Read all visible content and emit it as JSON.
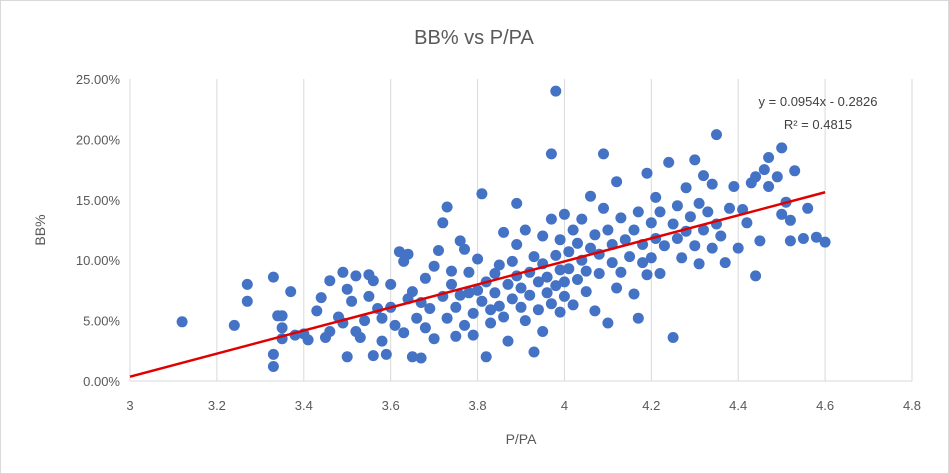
{
  "chart_data": {
    "type": "scatter",
    "title": "BB% vs P/PA",
    "xlabel": "P/PA",
    "ylabel": "BB%",
    "xlim": [
      3,
      4.8
    ],
    "ylim": [
      0,
      0.25
    ],
    "x_ticks": [
      "3",
      "3.2",
      "3.4",
      "3.6",
      "3.8",
      "4",
      "4.2",
      "4.4",
      "4.6",
      "4.8"
    ],
    "y_ticks": [
      "0.00%",
      "5.00%",
      "10.00%",
      "15.00%",
      "20.00%",
      "25.00%"
    ],
    "grid": "vertical",
    "legend": "none",
    "point_color": "#4472c4",
    "trend_color": "#e00000",
    "trendline": {
      "slope": 0.0954,
      "intercept": -0.2826,
      "x_range": [
        3,
        4.6
      ],
      "equation": "y = 0.0954x - 0.2826",
      "r_squared": "R² = 0.4815"
    },
    "points": [
      [
        3.12,
        0.049
      ],
      [
        3.24,
        0.046
      ],
      [
        3.27,
        0.08
      ],
      [
        3.27,
        0.066
      ],
      [
        3.33,
        0.086
      ],
      [
        3.33,
        0.022
      ],
      [
        3.33,
        0.012
      ],
      [
        3.34,
        0.054
      ],
      [
        3.35,
        0.054
      ],
      [
        3.35,
        0.044
      ],
      [
        3.35,
        0.035
      ],
      [
        3.37,
        0.074
      ],
      [
        3.38,
        0.038
      ],
      [
        3.4,
        0.039
      ],
      [
        3.41,
        0.034
      ],
      [
        3.43,
        0.058
      ],
      [
        3.44,
        0.069
      ],
      [
        3.45,
        0.036
      ],
      [
        3.46,
        0.083
      ],
      [
        3.46,
        0.041
      ],
      [
        3.48,
        0.053
      ],
      [
        3.49,
        0.048
      ],
      [
        3.49,
        0.09
      ],
      [
        3.5,
        0.076
      ],
      [
        3.5,
        0.02
      ],
      [
        3.51,
        0.066
      ],
      [
        3.52,
        0.087
      ],
      [
        3.52,
        0.041
      ],
      [
        3.53,
        0.036
      ],
      [
        3.54,
        0.05
      ],
      [
        3.55,
        0.07
      ],
      [
        3.55,
        0.088
      ],
      [
        3.56,
        0.083
      ],
      [
        3.56,
        0.021
      ],
      [
        3.57,
        0.06
      ],
      [
        3.58,
        0.052
      ],
      [
        3.58,
        0.033
      ],
      [
        3.59,
        0.022
      ],
      [
        3.6,
        0.061
      ],
      [
        3.6,
        0.08
      ],
      [
        3.61,
        0.046
      ],
      [
        3.62,
        0.107
      ],
      [
        3.63,
        0.099
      ],
      [
        3.63,
        0.04
      ],
      [
        3.64,
        0.068
      ],
      [
        3.64,
        0.105
      ],
      [
        3.65,
        0.02
      ],
      [
        3.65,
        0.074
      ],
      [
        3.66,
        0.052
      ],
      [
        3.67,
        0.019
      ],
      [
        3.67,
        0.065
      ],
      [
        3.68,
        0.085
      ],
      [
        3.68,
        0.044
      ],
      [
        3.69,
        0.06
      ],
      [
        3.7,
        0.095
      ],
      [
        3.7,
        0.035
      ],
      [
        3.71,
        0.108
      ],
      [
        3.72,
        0.07
      ],
      [
        3.72,
        0.131
      ],
      [
        3.73,
        0.144
      ],
      [
        3.73,
        0.052
      ],
      [
        3.74,
        0.08
      ],
      [
        3.74,
        0.091
      ],
      [
        3.75,
        0.061
      ],
      [
        3.75,
        0.037
      ],
      [
        3.76,
        0.071
      ],
      [
        3.76,
        0.116
      ],
      [
        3.77,
        0.109
      ],
      [
        3.77,
        0.046
      ],
      [
        3.78,
        0.073
      ],
      [
        3.78,
        0.09
      ],
      [
        3.79,
        0.056
      ],
      [
        3.79,
        0.038
      ],
      [
        3.8,
        0.075
      ],
      [
        3.8,
        0.101
      ],
      [
        3.81,
        0.066
      ],
      [
        3.81,
        0.155
      ],
      [
        3.82,
        0.02
      ],
      [
        3.82,
        0.082
      ],
      [
        3.83,
        0.048
      ],
      [
        3.83,
        0.059
      ],
      [
        3.84,
        0.089
      ],
      [
        3.84,
        0.073
      ],
      [
        3.85,
        0.062
      ],
      [
        3.85,
        0.096
      ],
      [
        3.86,
        0.123
      ],
      [
        3.86,
        0.053
      ],
      [
        3.87,
        0.08
      ],
      [
        3.87,
        0.033
      ],
      [
        3.88,
        0.099
      ],
      [
        3.88,
        0.068
      ],
      [
        3.89,
        0.087
      ],
      [
        3.89,
        0.113
      ],
      [
        3.89,
        0.147
      ],
      [
        3.9,
        0.061
      ],
      [
        3.9,
        0.077
      ],
      [
        3.91,
        0.125
      ],
      [
        3.91,
        0.05
      ],
      [
        3.92,
        0.09
      ],
      [
        3.92,
        0.071
      ],
      [
        3.93,
        0.103
      ],
      [
        3.93,
        0.024
      ],
      [
        3.94,
        0.082
      ],
      [
        3.94,
        0.059
      ],
      [
        3.95,
        0.12
      ],
      [
        3.95,
        0.097
      ],
      [
        3.95,
        0.041
      ],
      [
        3.96,
        0.073
      ],
      [
        3.96,
        0.086
      ],
      [
        3.97,
        0.134
      ],
      [
        3.97,
        0.064
      ],
      [
        3.97,
        0.188
      ],
      [
        3.98,
        0.104
      ],
      [
        3.98,
        0.079
      ],
      [
        3.98,
        0.24
      ],
      [
        3.99,
        0.092
      ],
      [
        3.99,
        0.057
      ],
      [
        3.99,
        0.117
      ],
      [
        4.0,
        0.082
      ],
      [
        4.0,
        0.138
      ],
      [
        4.0,
        0.07
      ],
      [
        4.01,
        0.107
      ],
      [
        4.01,
        0.093
      ],
      [
        4.02,
        0.125
      ],
      [
        4.02,
        0.063
      ],
      [
        4.03,
        0.114
      ],
      [
        4.03,
        0.084
      ],
      [
        4.04,
        0.1
      ],
      [
        4.04,
        0.134
      ],
      [
        4.05,
        0.091
      ],
      [
        4.05,
        0.074
      ],
      [
        4.06,
        0.153
      ],
      [
        4.06,
        0.11
      ],
      [
        4.07,
        0.121
      ],
      [
        4.07,
        0.058
      ],
      [
        4.08,
        0.105
      ],
      [
        4.08,
        0.089
      ],
      [
        4.09,
        0.143
      ],
      [
        4.09,
        0.188
      ],
      [
        4.1,
        0.125
      ],
      [
        4.1,
        0.048
      ],
      [
        4.11,
        0.098
      ],
      [
        4.11,
        0.113
      ],
      [
        4.12,
        0.165
      ],
      [
        4.12,
        0.077
      ],
      [
        4.13,
        0.135
      ],
      [
        4.13,
        0.09
      ],
      [
        4.14,
        0.117
      ],
      [
        4.15,
        0.103
      ],
      [
        4.16,
        0.125
      ],
      [
        4.16,
        0.072
      ],
      [
        4.17,
        0.14
      ],
      [
        4.17,
        0.052
      ],
      [
        4.18,
        0.098
      ],
      [
        4.18,
        0.113
      ],
      [
        4.19,
        0.172
      ],
      [
        4.19,
        0.088
      ],
      [
        4.2,
        0.131
      ],
      [
        4.2,
        0.102
      ],
      [
        4.21,
        0.152
      ],
      [
        4.21,
        0.118
      ],
      [
        4.22,
        0.14
      ],
      [
        4.22,
        0.089
      ],
      [
        4.23,
        0.112
      ],
      [
        4.24,
        0.181
      ],
      [
        4.25,
        0.13
      ],
      [
        4.25,
        0.036
      ],
      [
        4.26,
        0.145
      ],
      [
        4.26,
        0.118
      ],
      [
        4.27,
        0.102
      ],
      [
        4.28,
        0.16
      ],
      [
        4.28,
        0.124
      ],
      [
        4.29,
        0.136
      ],
      [
        4.3,
        0.183
      ],
      [
        4.3,
        0.112
      ],
      [
        4.31,
        0.147
      ],
      [
        4.31,
        0.097
      ],
      [
        4.32,
        0.17
      ],
      [
        4.32,
        0.125
      ],
      [
        4.33,
        0.14
      ],
      [
        4.34,
        0.163
      ],
      [
        4.34,
        0.11
      ],
      [
        4.35,
        0.204
      ],
      [
        4.35,
        0.13
      ],
      [
        4.36,
        0.12
      ],
      [
        4.37,
        0.098
      ],
      [
        4.38,
        0.143
      ],
      [
        4.39,
        0.161
      ],
      [
        4.4,
        0.11
      ],
      [
        4.41,
        0.142
      ],
      [
        4.42,
        0.131
      ],
      [
        4.43,
        0.164
      ],
      [
        4.44,
        0.087
      ],
      [
        4.44,
        0.169
      ],
      [
        4.45,
        0.116
      ],
      [
        4.46,
        0.175
      ],
      [
        4.47,
        0.161
      ],
      [
        4.47,
        0.185
      ],
      [
        4.49,
        0.169
      ],
      [
        4.5,
        0.138
      ],
      [
        4.5,
        0.193
      ],
      [
        4.51,
        0.148
      ],
      [
        4.52,
        0.133
      ],
      [
        4.52,
        0.116
      ],
      [
        4.53,
        0.174
      ],
      [
        4.55,
        0.118
      ],
      [
        4.56,
        0.143
      ],
      [
        4.58,
        0.119
      ],
      [
        4.6,
        0.115
      ]
    ]
  }
}
